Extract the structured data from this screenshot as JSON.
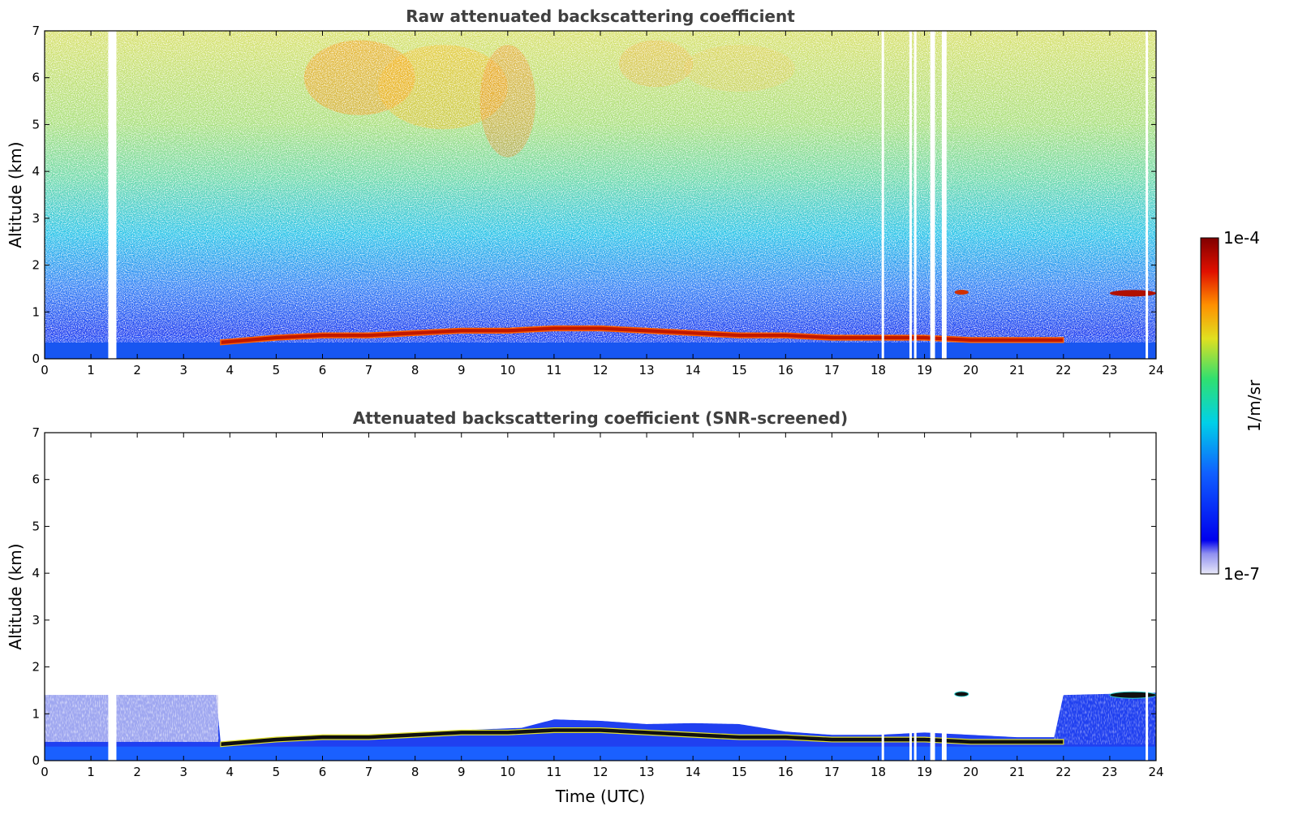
{
  "chart_data": [
    {
      "type": "heatmap",
      "title": "Raw attenuated backscattering coefficient",
      "xlabel": "",
      "ylabel": "Altitude (km)",
      "xlim": [
        0,
        24
      ],
      "ylim": [
        0,
        7
      ],
      "xticks": [
        0,
        1,
        2,
        3,
        4,
        5,
        6,
        7,
        8,
        9,
        10,
        11,
        12,
        13,
        14,
        15,
        16,
        17,
        18,
        19,
        20,
        21,
        22,
        23,
        24
      ],
      "yticks": [
        0,
        1,
        2,
        3,
        4,
        5,
        6,
        7
      ],
      "missing_data_times_utc": [
        1.4,
        1.5,
        18.1,
        18.7,
        18.8,
        19.15,
        19.2,
        19.4,
        19.45,
        23.8
      ],
      "cloud_layer": {
        "x": [
          3.8,
          5,
          6,
          7,
          8,
          9,
          10,
          11,
          12,
          13,
          14,
          15,
          16,
          17,
          18,
          19,
          20,
          21,
          22
        ],
        "base_km": [
          0.3,
          0.4,
          0.45,
          0.45,
          0.5,
          0.55,
          0.55,
          0.6,
          0.6,
          0.55,
          0.5,
          0.45,
          0.45,
          0.4,
          0.4,
          0.4,
          0.35,
          0.35,
          0.35
        ]
      }
    },
    {
      "type": "heatmap",
      "title": "Attenuated backscattering coefficient (SNR-screened)",
      "xlabel": "Time (UTC)",
      "ylabel": "Altitude (km)",
      "xlim": [
        0,
        24
      ],
      "ylim": [
        0,
        7
      ],
      "xticks": [
        0,
        1,
        2,
        3,
        4,
        5,
        6,
        7,
        8,
        9,
        10,
        11,
        12,
        13,
        14,
        15,
        16,
        17,
        18,
        19,
        20,
        21,
        22,
        23,
        24
      ],
      "yticks": [
        0,
        1,
        2,
        3,
        4,
        5,
        6,
        7
      ],
      "valid_top_km": {
        "x": [
          0,
          3.7,
          3.8,
          9,
          10.3,
          11,
          12,
          13,
          14,
          15,
          16,
          17,
          18,
          19,
          20,
          21,
          21.8,
          22,
          24
        ],
        "y": [
          1.4,
          1.4,
          0.4,
          0.65,
          0.7,
          0.88,
          0.85,
          0.78,
          0.8,
          0.78,
          0.62,
          0.55,
          0.55,
          0.6,
          0.55,
          0.5,
          0.5,
          1.4,
          1.45
        ]
      }
    }
  ],
  "colorbar": {
    "label": "1/m/sr",
    "max_label": "1e-4",
    "min_label": "1e-7",
    "scale": "log",
    "range": [
      1e-07,
      0.0001
    ],
    "colormap": [
      "#e8e8f8",
      "#0000ee",
      "#1060ff",
      "#00d8e0",
      "#30e070",
      "#e0e020",
      "#ff9000",
      "#e01000",
      "#800000"
    ]
  }
}
